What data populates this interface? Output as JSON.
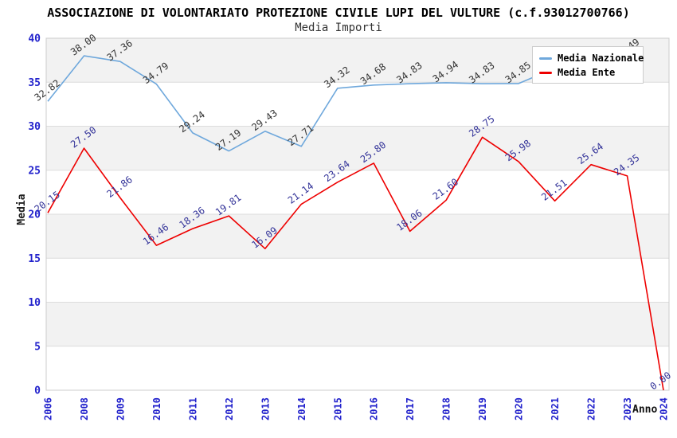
{
  "header": {
    "title": "ASSOCIAZIONE DI VOLONTARIATO PROTEZIONE CIVILE LUPI DEL VULTURE (c.f.93012700766)",
    "subtitle": "Media Importi"
  },
  "axes": {
    "y_label": "Media",
    "x_label": "Anno"
  },
  "legend": {
    "items": [
      {
        "label": "Media Nazionale",
        "color": "#6fa8dc"
      },
      {
        "label": "Media Ente",
        "color": "#ee0000"
      }
    ]
  },
  "colors": {
    "band": "#f2f2f2",
    "grid": "#dcdcdc",
    "border": "#cccccc",
    "tick": "#2222cc",
    "background": "#ffffff"
  },
  "chart_data": {
    "type": "line",
    "title": "Media Importi",
    "xlabel": "Anno",
    "ylabel": "Media",
    "ylim": [
      0,
      40
    ],
    "y_ticks": [
      0,
      5,
      10,
      15,
      20,
      25,
      30,
      35,
      40
    ],
    "grid": true,
    "legend_position": "top-right",
    "categories": [
      "2006",
      "2008",
      "2009",
      "2010",
      "2011",
      "2012",
      "2013",
      "2014",
      "2015",
      "2016",
      "2017",
      "2018",
      "2019",
      "2020",
      "2021",
      "2022",
      "2023",
      "2024"
    ],
    "series": [
      {
        "name": "Media Nazionale",
        "color": "#6fa8dc",
        "label_color": "#333333",
        "values": [
          32.82,
          38.0,
          37.36,
          34.79,
          29.24,
          27.19,
          29.43,
          27.71,
          34.32,
          34.68,
          34.83,
          34.94,
          34.83,
          34.85,
          36.6,
          36.2,
          37.49,
          null
        ]
      },
      {
        "name": "Media Ente",
        "color": "#ee0000",
        "label_color": "#333399",
        "values": [
          20.15,
          27.5,
          21.86,
          16.46,
          18.36,
          19.81,
          16.09,
          21.14,
          23.64,
          25.8,
          18.06,
          21.6,
          28.75,
          25.98,
          21.51,
          25.64,
          24.35,
          0.0
        ]
      }
    ]
  }
}
